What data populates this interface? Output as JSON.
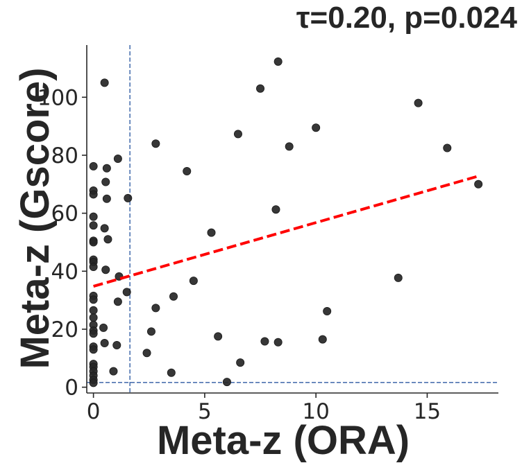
{
  "chart_data": {
    "type": "scatter",
    "title": "τ=0.20, p=0.024",
    "xlabel": "Meta-z (ORA)",
    "ylabel": "Meta-z (Gscore)",
    "xlim": [
      -0.3,
      18.2
    ],
    "ylim": [
      -2,
      118
    ],
    "xticks": [
      0,
      5,
      10,
      15
    ],
    "yticks": [
      0,
      20,
      40,
      60,
      80,
      100
    ],
    "grid": false,
    "legend": "none",
    "threshold_lines": {
      "x": 1.64,
      "y": 1.64,
      "color": "#4c72b0",
      "style": "dashed"
    },
    "trend_line": {
      "x": [
        0,
        17.3
      ],
      "y": [
        34.8,
        72.8
      ],
      "color": "#ff0000",
      "style": "dashed"
    },
    "point_color": "#262626",
    "points": [
      [
        0,
        76.2
      ],
      [
        0,
        67.8
      ],
      [
        0,
        66.5
      ],
      [
        0,
        58.8
      ],
      [
        0,
        55.8
      ],
      [
        0,
        50.5
      ],
      [
        0,
        50.0
      ],
      [
        0,
        44.0
      ],
      [
        0,
        43.2
      ],
      [
        0,
        41.5
      ],
      [
        0,
        31.5
      ],
      [
        0,
        30.2
      ],
      [
        0,
        26.5
      ],
      [
        0,
        24.0
      ],
      [
        0,
        21.5
      ],
      [
        0,
        19.5
      ],
      [
        0,
        18.5
      ],
      [
        0,
        14.0
      ],
      [
        0,
        13.0
      ],
      [
        0,
        8.0
      ],
      [
        0,
        7.0
      ],
      [
        0,
        5.5
      ],
      [
        0,
        4.0
      ],
      [
        0,
        2.5
      ],
      [
        0,
        1.5
      ],
      [
        0.5,
        105.0
      ],
      [
        0.6,
        75.5
      ],
      [
        0.55,
        70.8
      ],
      [
        0.6,
        65.0
      ],
      [
        0.5,
        54.8
      ],
      [
        0.65,
        51.0
      ],
      [
        0.55,
        40.5
      ],
      [
        0.45,
        20.5
      ],
      [
        0.5,
        15.2
      ],
      [
        0.9,
        5.5
      ],
      [
        1.1,
        78.8
      ],
      [
        1.15,
        38.2
      ],
      [
        1.1,
        29.5
      ],
      [
        1.05,
        14.5
      ],
      [
        1.55,
        65.2
      ],
      [
        1.5,
        32.8
      ],
      [
        2.8,
        84.0
      ],
      [
        2.8,
        27.3
      ],
      [
        2.6,
        19.2
      ],
      [
        2.4,
        11.8
      ],
      [
        3.6,
        31.3
      ],
      [
        3.5,
        5.0
      ],
      [
        4.2,
        74.5
      ],
      [
        4.5,
        36.7
      ],
      [
        5.3,
        53.3
      ],
      [
        5.6,
        17.5
      ],
      [
        6.0,
        1.8
      ],
      [
        6.5,
        87.3
      ],
      [
        6.6,
        8.5
      ],
      [
        7.5,
        103.0
      ],
      [
        7.7,
        15.8
      ],
      [
        8.3,
        112.3
      ],
      [
        8.2,
        61.3
      ],
      [
        8.3,
        15.5
      ],
      [
        8.8,
        83.0
      ],
      [
        10.0,
        89.5
      ],
      [
        10.3,
        16.5
      ],
      [
        10.5,
        26.2
      ],
      [
        13.7,
        37.7
      ],
      [
        14.6,
        98.0
      ],
      [
        15.9,
        82.5
      ],
      [
        17.3,
        70.0
      ]
    ]
  }
}
